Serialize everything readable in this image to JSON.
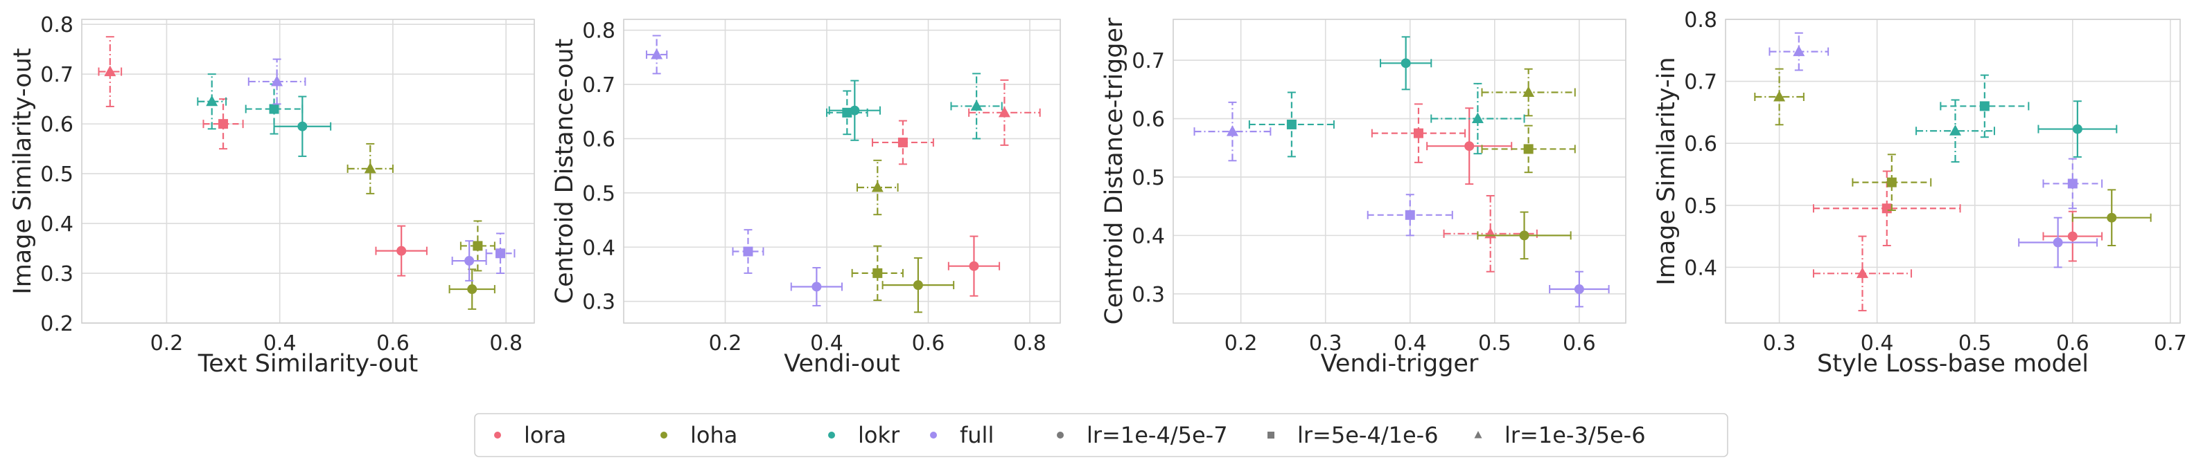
{
  "chart_data": [
    {
      "type": "scatter",
      "xlabel": "Text Similarity-out",
      "ylabel": "Image Similarity-out",
      "xlim": [
        0.05,
        0.85
      ],
      "ylim": [
        0.2,
        0.81
      ],
      "xticks": [
        0.2,
        0.4,
        0.6,
        0.8
      ],
      "yticks": [
        0.2,
        0.3,
        0.4,
        0.5,
        0.6,
        0.7,
        0.8
      ],
      "tick_format": 1,
      "grid": true,
      "points": [
        {
          "method": "lora",
          "lr": "lr=1e-4/5e-7",
          "x": 0.615,
          "y": 0.345,
          "xerr": 0.045,
          "yerr": 0.05
        },
        {
          "method": "lora",
          "lr": "lr=5e-4/1e-6",
          "x": 0.3,
          "y": 0.6,
          "xerr": 0.035,
          "yerr": 0.05
        },
        {
          "method": "lora",
          "lr": "lr=1e-3/5e-6",
          "x": 0.1,
          "y": 0.705,
          "xerr": 0.02,
          "yerr": 0.07
        },
        {
          "method": "loha",
          "lr": "lr=1e-4/5e-7",
          "x": 0.74,
          "y": 0.268,
          "xerr": 0.04,
          "yerr": 0.04
        },
        {
          "method": "loha",
          "lr": "lr=5e-4/1e-6",
          "x": 0.75,
          "y": 0.355,
          "xerr": 0.03,
          "yerr": 0.05
        },
        {
          "method": "loha",
          "lr": "lr=1e-3/5e-6",
          "x": 0.56,
          "y": 0.51,
          "xerr": 0.04,
          "yerr": 0.05
        },
        {
          "method": "lokr",
          "lr": "lr=1e-4/5e-7",
          "x": 0.44,
          "y": 0.595,
          "xerr": 0.05,
          "yerr": 0.06
        },
        {
          "method": "lokr",
          "lr": "lr=5e-4/1e-6",
          "x": 0.39,
          "y": 0.63,
          "xerr": 0.05,
          "yerr": 0.05
        },
        {
          "method": "lokr",
          "lr": "lr=1e-3/5e-6",
          "x": 0.28,
          "y": 0.645,
          "xerr": 0.025,
          "yerr": 0.055
        },
        {
          "method": "full",
          "lr": "lr=1e-4/5e-7",
          "x": 0.735,
          "y": 0.325,
          "xerr": 0.03,
          "yerr": 0.04
        },
        {
          "method": "full",
          "lr": "lr=5e-4/1e-6",
          "x": 0.79,
          "y": 0.34,
          "xerr": 0.025,
          "yerr": 0.04
        },
        {
          "method": "full",
          "lr": "lr=1e-3/5e-6",
          "x": 0.395,
          "y": 0.685,
          "xerr": 0.05,
          "yerr": 0.045
        }
      ]
    },
    {
      "type": "scatter",
      "xlabel": "Vendi-out",
      "ylabel": "Centroid Distance-out",
      "xlim": [
        0.0,
        0.86
      ],
      "ylim": [
        0.26,
        0.82
      ],
      "xticks": [
        0.2,
        0.4,
        0.6,
        0.8
      ],
      "yticks": [
        0.3,
        0.4,
        0.5,
        0.6,
        0.7,
        0.8
      ],
      "tick_format": 1,
      "grid": true,
      "points": [
        {
          "method": "lora",
          "lr": "lr=1e-4/5e-7",
          "x": 0.69,
          "y": 0.365,
          "xerr": 0.05,
          "yerr": 0.055
        },
        {
          "method": "lora",
          "lr": "lr=5e-4/1e-6",
          "x": 0.55,
          "y": 0.593,
          "xerr": 0.06,
          "yerr": 0.04
        },
        {
          "method": "lora",
          "lr": "lr=1e-3/5e-6",
          "x": 0.75,
          "y": 0.648,
          "xerr": 0.07,
          "yerr": 0.06
        },
        {
          "method": "loha",
          "lr": "lr=1e-4/5e-7",
          "x": 0.58,
          "y": 0.33,
          "xerr": 0.07,
          "yerr": 0.05
        },
        {
          "method": "loha",
          "lr": "lr=5e-4/1e-6",
          "x": 0.5,
          "y": 0.352,
          "xerr": 0.05,
          "yerr": 0.05
        },
        {
          "method": "loha",
          "lr": "lr=1e-3/5e-6",
          "x": 0.5,
          "y": 0.51,
          "xerr": 0.04,
          "yerr": 0.05
        },
        {
          "method": "lokr",
          "lr": "lr=1e-4/5e-7",
          "x": 0.455,
          "y": 0.652,
          "xerr": 0.05,
          "yerr": 0.055
        },
        {
          "method": "lokr",
          "lr": "lr=5e-4/1e-6",
          "x": 0.44,
          "y": 0.648,
          "xerr": 0.04,
          "yerr": 0.04
        },
        {
          "method": "lokr",
          "lr": "lr=1e-3/5e-6",
          "x": 0.695,
          "y": 0.66,
          "xerr": 0.05,
          "yerr": 0.06
        },
        {
          "method": "full",
          "lr": "lr=1e-4/5e-7",
          "x": 0.38,
          "y": 0.327,
          "xerr": 0.05,
          "yerr": 0.035
        },
        {
          "method": "full",
          "lr": "lr=5e-4/1e-6",
          "x": 0.245,
          "y": 0.392,
          "xerr": 0.03,
          "yerr": 0.04
        },
        {
          "method": "full",
          "lr": "lr=1e-3/5e-6",
          "x": 0.065,
          "y": 0.755,
          "xerr": 0.02,
          "yerr": 0.035
        }
      ]
    },
    {
      "type": "scatter",
      "xlabel": "Vendi-trigger",
      "ylabel": "Centroid Distance-trigger",
      "xlim": [
        0.12,
        0.655
      ],
      "ylim": [
        0.25,
        0.77
      ],
      "xticks": [
        0.2,
        0.3,
        0.4,
        0.5,
        0.6
      ],
      "yticks": [
        0.3,
        0.4,
        0.5,
        0.6,
        0.7
      ],
      "tick_format": 1,
      "grid": true,
      "points": [
        {
          "method": "lora",
          "lr": "lr=1e-4/5e-7",
          "x": 0.47,
          "y": 0.553,
          "xerr": 0.05,
          "yerr": 0.065
        },
        {
          "method": "lora",
          "lr": "lr=5e-4/1e-6",
          "x": 0.41,
          "y": 0.575,
          "xerr": 0.055,
          "yerr": 0.05
        },
        {
          "method": "lora",
          "lr": "lr=1e-3/5e-6",
          "x": 0.495,
          "y": 0.403,
          "xerr": 0.055,
          "yerr": 0.065
        },
        {
          "method": "loha",
          "lr": "lr=1e-4/5e-7",
          "x": 0.535,
          "y": 0.4,
          "xerr": 0.055,
          "yerr": 0.04
        },
        {
          "method": "loha",
          "lr": "lr=5e-4/1e-6",
          "x": 0.54,
          "y": 0.548,
          "xerr": 0.055,
          "yerr": 0.04
        },
        {
          "method": "loha",
          "lr": "lr=1e-3/5e-6",
          "x": 0.54,
          "y": 0.645,
          "xerr": 0.055,
          "yerr": 0.04
        },
        {
          "method": "lokr",
          "lr": "lr=1e-4/5e-7",
          "x": 0.395,
          "y": 0.695,
          "xerr": 0.03,
          "yerr": 0.045
        },
        {
          "method": "lokr",
          "lr": "lr=5e-4/1e-6",
          "x": 0.26,
          "y": 0.59,
          "xerr": 0.05,
          "yerr": 0.055
        },
        {
          "method": "lokr",
          "lr": "lr=1e-3/5e-6",
          "x": 0.48,
          "y": 0.6,
          "xerr": 0.055,
          "yerr": 0.06
        },
        {
          "method": "full",
          "lr": "lr=1e-4/5e-7",
          "x": 0.6,
          "y": 0.308,
          "xerr": 0.035,
          "yerr": 0.03
        },
        {
          "method": "full",
          "lr": "lr=5e-4/1e-6",
          "x": 0.4,
          "y": 0.435,
          "xerr": 0.05,
          "yerr": 0.035
        },
        {
          "method": "full",
          "lr": "lr=1e-3/5e-6",
          "x": 0.19,
          "y": 0.578,
          "xerr": 0.045,
          "yerr": 0.05
        }
      ]
    },
    {
      "type": "scatter",
      "xlabel": "Style Loss-base model",
      "ylabel": "Image Similarity-in",
      "xlim": [
        0.245,
        0.71
      ],
      "ylim": [
        0.31,
        0.8
      ],
      "xticks": [
        0.3,
        0.4,
        0.5,
        0.6,
        0.7
      ],
      "yticks": [
        0.4,
        0.5,
        0.6,
        0.7,
        0.8
      ],
      "tick_format": 1,
      "grid": true,
      "points": [
        {
          "method": "lora",
          "lr": "lr=1e-4/5e-7",
          "x": 0.6,
          "y": 0.45,
          "xerr": 0.03,
          "yerr": 0.04
        },
        {
          "method": "lora",
          "lr": "lr=5e-4/1e-6",
          "x": 0.41,
          "y": 0.495,
          "xerr": 0.075,
          "yerr": 0.06
        },
        {
          "method": "lora",
          "lr": "lr=1e-3/5e-6",
          "x": 0.385,
          "y": 0.39,
          "xerr": 0.05,
          "yerr": 0.06
        },
        {
          "method": "loha",
          "lr": "lr=1e-4/5e-7",
          "x": 0.64,
          "y": 0.48,
          "xerr": 0.04,
          "yerr": 0.045
        },
        {
          "method": "loha",
          "lr": "lr=5e-4/1e-6",
          "x": 0.415,
          "y": 0.537,
          "xerr": 0.04,
          "yerr": 0.045
        },
        {
          "method": "loha",
          "lr": "lr=1e-3/5e-6",
          "x": 0.3,
          "y": 0.675,
          "xerr": 0.025,
          "yerr": 0.045
        },
        {
          "method": "lokr",
          "lr": "lr=1e-4/5e-7",
          "x": 0.605,
          "y": 0.623,
          "xerr": 0.04,
          "yerr": 0.045
        },
        {
          "method": "lokr",
          "lr": "lr=5e-4/1e-6",
          "x": 0.51,
          "y": 0.66,
          "xerr": 0.045,
          "yerr": 0.05
        },
        {
          "method": "lokr",
          "lr": "lr=1e-3/5e-6",
          "x": 0.48,
          "y": 0.62,
          "xerr": 0.04,
          "yerr": 0.05
        },
        {
          "method": "full",
          "lr": "lr=1e-4/5e-7",
          "x": 0.585,
          "y": 0.44,
          "xerr": 0.04,
          "yerr": 0.04
        },
        {
          "method": "full",
          "lr": "lr=5e-4/1e-6",
          "x": 0.6,
          "y": 0.535,
          "xerr": 0.03,
          "yerr": 0.04
        },
        {
          "method": "full",
          "lr": "lr=1e-3/5e-6",
          "x": 0.32,
          "y": 0.748,
          "xerr": 0.03,
          "yerr": 0.03
        }
      ]
    }
  ],
  "legend": {
    "placement": "bottom-center",
    "methods": [
      {
        "key": "lora",
        "label": "lora",
        "color": "#f0687a"
      },
      {
        "key": "loha",
        "label": "loha",
        "color": "#8c9a2c"
      },
      {
        "key": "lokr",
        "label": "lokr",
        "color": "#2eab9c"
      },
      {
        "key": "full",
        "label": "full",
        "color": "#a08cf0"
      }
    ],
    "learning_rates": [
      {
        "key": "lr=1e-4/5e-7",
        "label": "lr=1e-4/5e-7",
        "marker": "circle",
        "line": "solid"
      },
      {
        "key": "lr=5e-4/1e-6",
        "label": "lr=5e-4/1e-6",
        "marker": "square",
        "line": "dashed"
      },
      {
        "key": "lr=1e-3/5e-6",
        "label": "lr=1e-3/5e-6",
        "marker": "triangle",
        "line": "dashdot"
      }
    ],
    "marker_color": "#7a7a7a"
  }
}
